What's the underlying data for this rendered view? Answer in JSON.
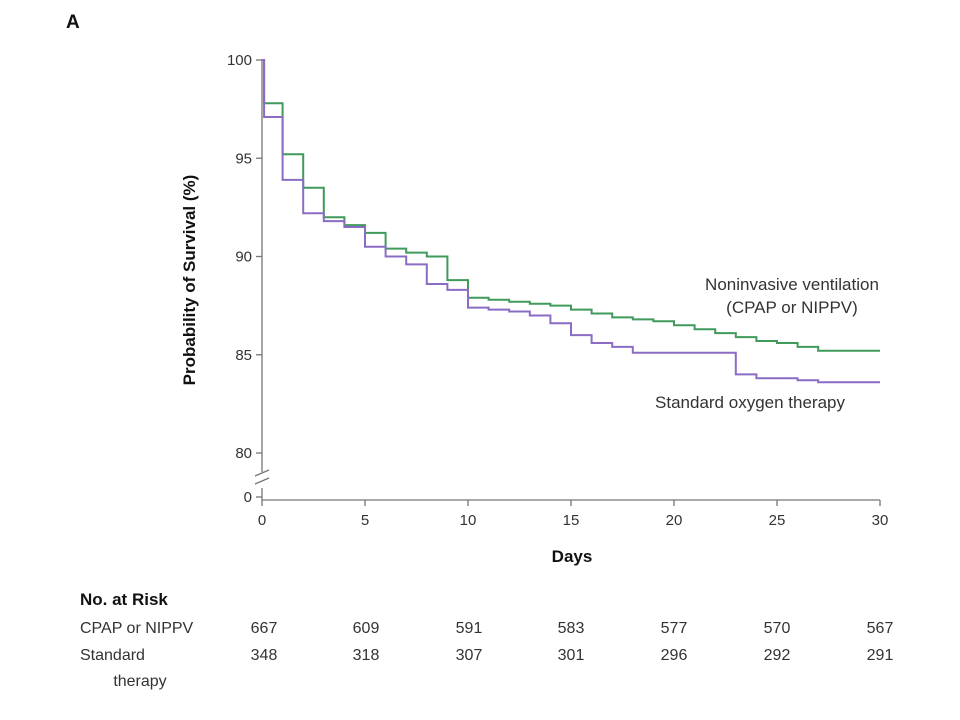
{
  "chart_data": {
    "type": "line",
    "panel_label": "A",
    "xlabel": "Days",
    "ylabel": "Probability of Survival (%)",
    "xlim": [
      0,
      30
    ],
    "ylim": [
      80,
      100
    ],
    "x_ticks": [
      0,
      5,
      10,
      15,
      20,
      25,
      30
    ],
    "y_ticks": [
      80,
      85,
      90,
      95,
      100
    ],
    "y_break_tick": "0",
    "grid": false,
    "series": [
      {
        "label_lines": [
          "Noninvasive ventilation",
          "(CPAP or NIPPV)"
        ],
        "color": "#3f9a5c",
        "step": true,
        "points": [
          [
            0,
            100
          ],
          [
            0.1,
            97.8
          ],
          [
            1,
            95.2
          ],
          [
            2,
            93.5
          ],
          [
            3,
            92.0
          ],
          [
            4,
            91.6
          ],
          [
            5,
            91.2
          ],
          [
            6,
            90.4
          ],
          [
            7,
            90.2
          ],
          [
            8,
            90.0
          ],
          [
            9,
            88.8
          ],
          [
            10,
            87.9
          ],
          [
            11,
            87.8
          ],
          [
            12,
            87.7
          ],
          [
            13,
            87.6
          ],
          [
            14,
            87.5
          ],
          [
            15,
            87.3
          ],
          [
            16,
            87.1
          ],
          [
            17,
            86.9
          ],
          [
            18,
            86.8
          ],
          [
            19,
            86.7
          ],
          [
            20,
            86.5
          ],
          [
            21,
            86.3
          ],
          [
            22,
            86.1
          ],
          [
            23,
            85.9
          ],
          [
            24,
            85.7
          ],
          [
            25,
            85.6
          ],
          [
            26,
            85.4
          ],
          [
            27,
            85.2
          ],
          [
            30,
            85.2
          ]
        ]
      },
      {
        "label_lines": [
          "Standard oxygen therapy"
        ],
        "color": "#8a6cc4",
        "step": true,
        "points": [
          [
            0,
            100
          ],
          [
            0.1,
            97.1
          ],
          [
            1,
            93.9
          ],
          [
            2,
            92.2
          ],
          [
            3,
            91.8
          ],
          [
            4,
            91.5
          ],
          [
            5,
            90.5
          ],
          [
            6,
            90.0
          ],
          [
            7,
            89.6
          ],
          [
            8,
            88.6
          ],
          [
            9,
            88.3
          ],
          [
            10,
            87.4
          ],
          [
            11,
            87.3
          ],
          [
            12,
            87.2
          ],
          [
            13,
            87.0
          ],
          [
            14,
            86.6
          ],
          [
            15,
            86.0
          ],
          [
            16,
            85.6
          ],
          [
            17,
            85.4
          ],
          [
            18,
            85.1
          ],
          [
            19,
            85.1
          ],
          [
            20,
            85.1
          ],
          [
            21,
            85.1
          ],
          [
            22,
            85.1
          ],
          [
            23,
            84.0
          ],
          [
            24,
            83.8
          ],
          [
            25,
            83.8
          ],
          [
            26,
            83.7
          ],
          [
            27,
            83.6
          ],
          [
            30,
            83.6
          ]
        ]
      }
    ],
    "risk_table": {
      "title": "No. at Risk",
      "rows": [
        {
          "label_lines": [
            "CPAP or NIPPV"
          ],
          "values": [
            667,
            609,
            591,
            583,
            577,
            570,
            567
          ]
        },
        {
          "label_lines": [
            "Standard",
            "therapy"
          ],
          "values": [
            348,
            318,
            307,
            301,
            296,
            292,
            291
          ]
        }
      ]
    }
  }
}
